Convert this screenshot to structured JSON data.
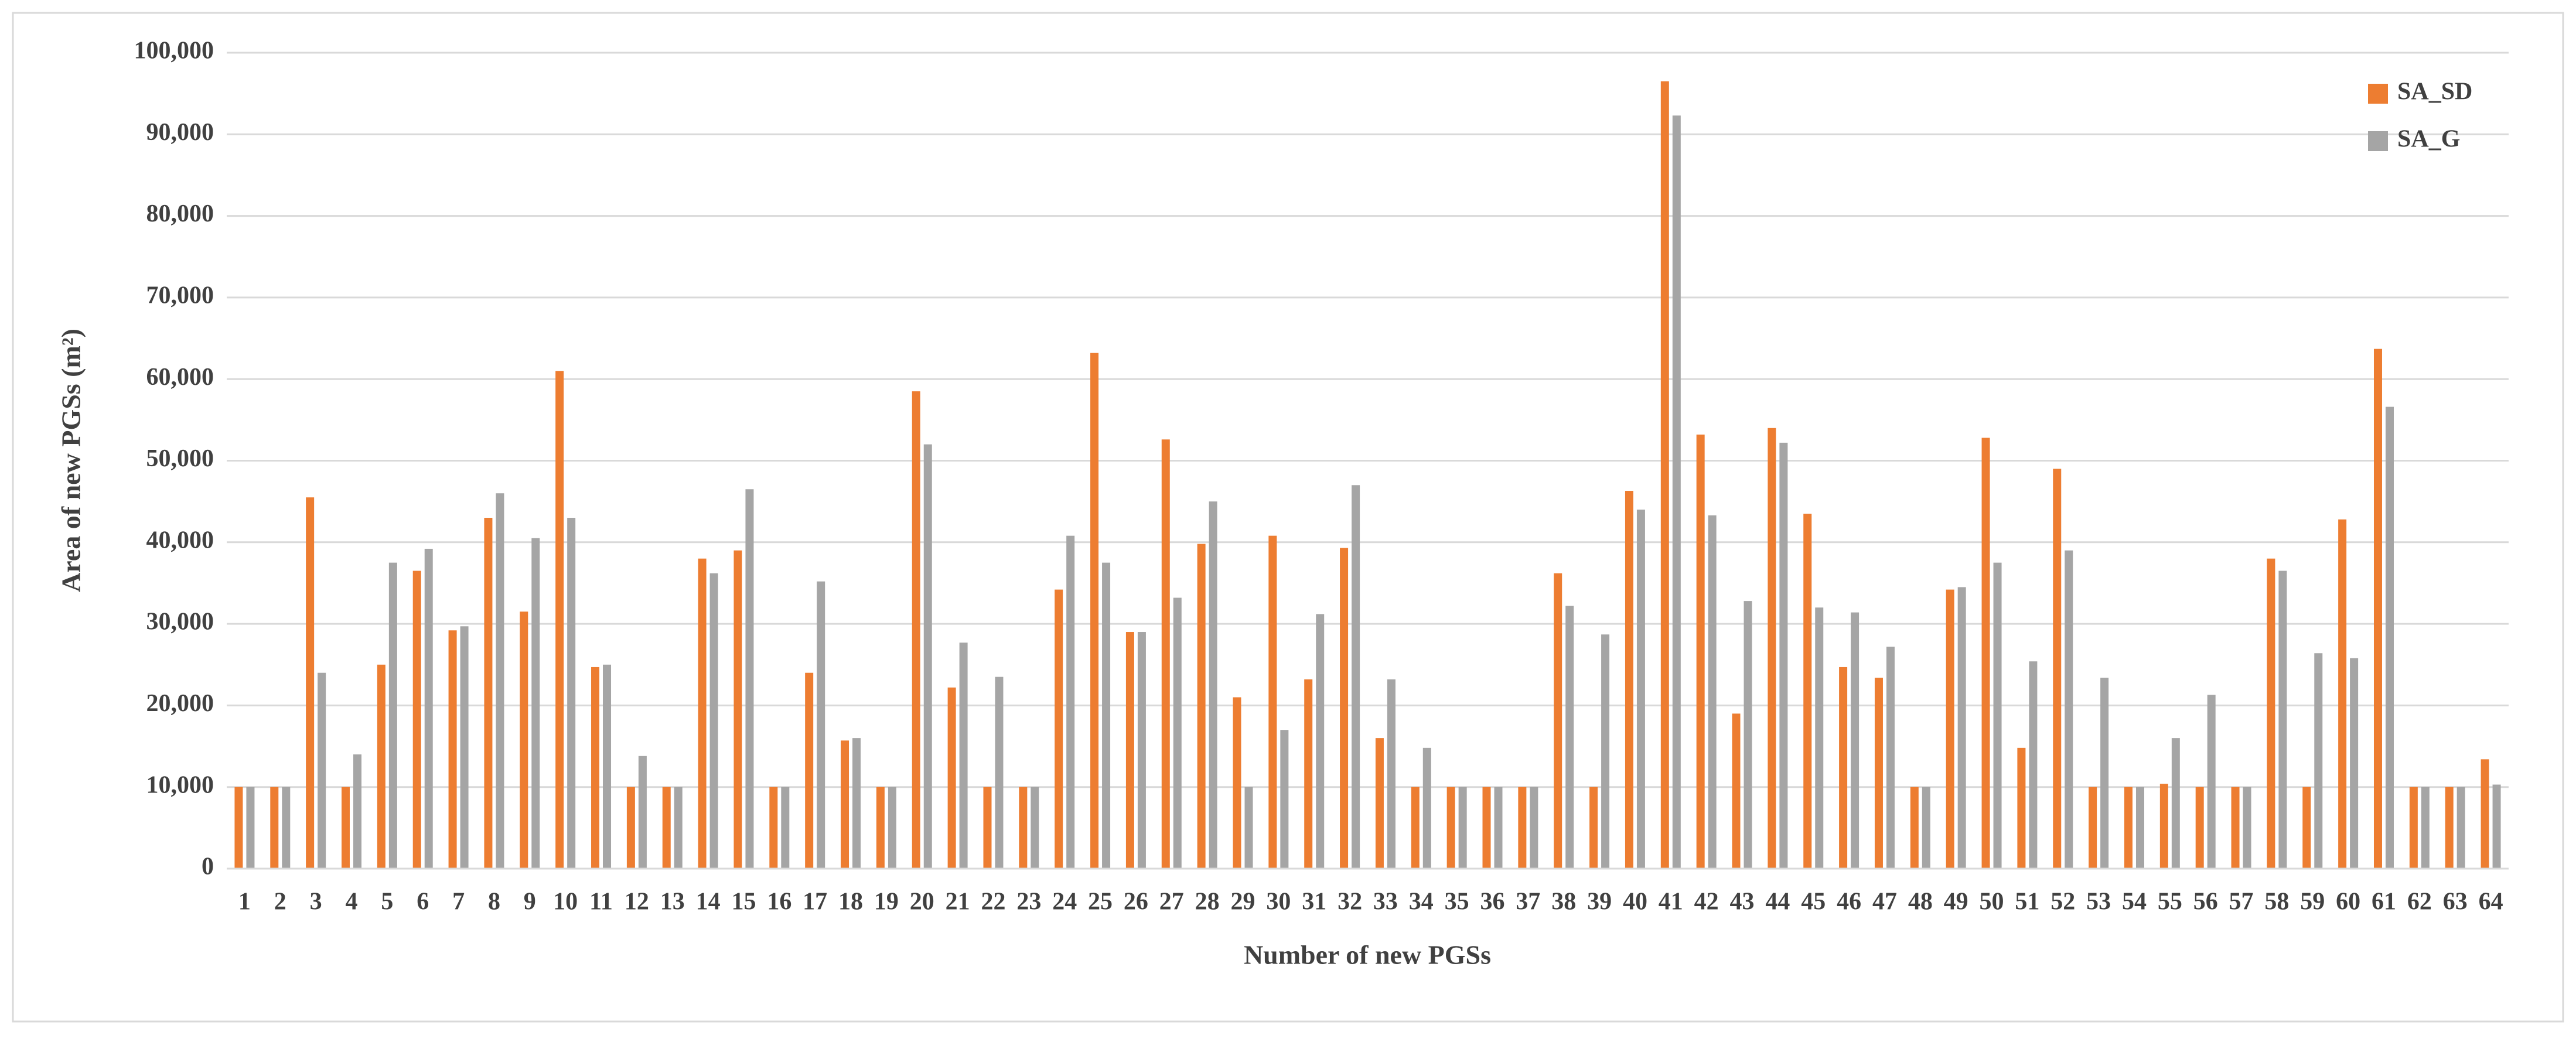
{
  "chart_data": {
    "type": "bar",
    "x_label": "Number of new PGSs",
    "y_label": "Area of new PGSs (m²)",
    "categories": [
      "1",
      "2",
      "3",
      "4",
      "5",
      "6",
      "7",
      "8",
      "9",
      "10",
      "11",
      "12",
      "13",
      "14",
      "15",
      "16",
      "17",
      "18",
      "19",
      "20",
      "21",
      "22",
      "23",
      "24",
      "25",
      "26",
      "27",
      "28",
      "29",
      "30",
      "31",
      "32",
      "33",
      "34",
      "35",
      "36",
      "37",
      "38",
      "39",
      "40",
      "41",
      "42",
      "43",
      "44",
      "45",
      "46",
      "47",
      "48",
      "49",
      "50",
      "51",
      "52",
      "53",
      "54",
      "55",
      "56",
      "57",
      "58",
      "59",
      "60",
      "61",
      "62",
      "63",
      "64"
    ],
    "series": [
      {
        "name": "SA_SD",
        "color": "#ed7d31",
        "values": [
          10000,
          10000,
          45500,
          10000,
          25000,
          36500,
          29200,
          43000,
          31500,
          61000,
          24700,
          10000,
          10000,
          38000,
          39000,
          10000,
          24000,
          15700,
          10000,
          58500,
          22200,
          10000,
          10000,
          34200,
          63200,
          29000,
          52600,
          39800,
          21000,
          40800,
          23200,
          39300,
          16000,
          10000,
          10000,
          10000,
          10000,
          36200,
          10000,
          46300,
          96500,
          53200,
          19000,
          54000,
          43500,
          24700,
          23400,
          10000,
          34200,
          52800,
          14800,
          49000,
          10000,
          10000,
          10400,
          10000,
          10000,
          38000,
          10000,
          42800,
          63700,
          10000,
          10000,
          13400
        ]
      },
      {
        "name": "SA_G",
        "color": "#a5a5a5",
        "values": [
          10000,
          10000,
          24000,
          14000,
          37500,
          39200,
          29700,
          46000,
          40500,
          43000,
          25000,
          13800,
          10000,
          36200,
          46500,
          10000,
          35200,
          16000,
          10000,
          52000,
          27700,
          23500,
          10000,
          40800,
          37500,
          29000,
          33200,
          45000,
          10000,
          17000,
          31200,
          47000,
          23200,
          14800,
          10000,
          10000,
          10000,
          32200,
          28700,
          44000,
          92300,
          43300,
          32800,
          52200,
          32000,
          31400,
          27200,
          10000,
          34500,
          37500,
          25400,
          39000,
          23400,
          10000,
          16000,
          21300,
          10000,
          36500,
          26400,
          25800,
          56600,
          10000,
          10000,
          10300
        ]
      }
    ],
    "ylim": [
      0,
      100000
    ],
    "yticks": [
      0,
      {
        "value": 10000,
        "label": "10,000"
      },
      {
        "value": 20000,
        "label": "20,000"
      },
      {
        "value": 30000,
        "label": "30,000"
      },
      {
        "value": 40000,
        "label": "40,000"
      },
      {
        "value": 50000,
        "label": "50,000"
      },
      {
        "value": 60000,
        "label": "60,000"
      },
      {
        "value": 70000,
        "label": "70,000"
      },
      {
        "value": 80000,
        "label": "80,000"
      },
      {
        "value": 90000,
        "label": "90,000"
      },
      {
        "value": 100000,
        "label": "100,000"
      }
    ],
    "grid": true,
    "legend_position": "top-right"
  }
}
